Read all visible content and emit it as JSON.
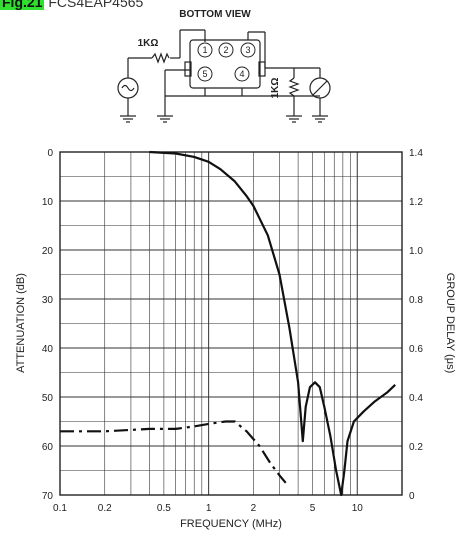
{
  "figure": {
    "number": "Fig.21",
    "part": "FCS4EAP4565"
  },
  "schematic": {
    "view_label": "BOTTOM VIEW",
    "source_resistor": "1KΩ",
    "load_resistor": "1KΩ",
    "pins": [
      "1",
      "2",
      "3",
      "5",
      "4"
    ]
  },
  "chart_data": {
    "type": "line",
    "xlabel": "FREQUENCY (MHz)",
    "ylabel_left": "ATTENUATION (dB)",
    "ylabel_right": "GROUP DELAY (μs)",
    "x_scale": "log",
    "xlim": [
      0.1,
      20
    ],
    "ylim_left": [
      0,
      70
    ],
    "ylim_right": [
      0,
      1.4
    ],
    "x_ticks": [
      0.1,
      0.2,
      0.5,
      1,
      2,
      5,
      10
    ],
    "x_tick_labels": [
      "0.1",
      "0.2",
      "0.5",
      "1",
      "2",
      "5",
      "10"
    ],
    "y_left_ticks": [
      0,
      10,
      20,
      30,
      40,
      50,
      60,
      70
    ],
    "y_left_tick_labels": [
      "0",
      "10",
      "20",
      "30",
      "40",
      "50",
      "60",
      "70"
    ],
    "y_right_ticks": [
      1.4,
      1.2,
      1.0,
      0.8,
      0.6,
      0.4,
      0.2,
      0
    ],
    "y_right_tick_labels": [
      "1.4",
      "1.2",
      "1.0",
      "0.8",
      "0.6",
      "0.4",
      "0.2",
      "0"
    ],
    "grid": true,
    "series": [
      {
        "axis": "left",
        "style": "solid",
        "x": [
          0.4,
          0.6,
          0.8,
          1.0,
          1.2,
          1.5,
          1.8,
          2.0,
          2.5,
          3.0,
          3.5,
          4.0,
          4.3,
          4.5,
          4.8,
          5.2,
          5.6,
          6.0,
          6.6,
          7.2,
          7.8,
          8.2,
          8.6,
          9.5,
          11,
          13,
          16,
          18
        ],
        "values": [
          0,
          0.3,
          1,
          2,
          3.5,
          6,
          9,
          11,
          17,
          25,
          36,
          47,
          59,
          52,
          48,
          47,
          48,
          52,
          58,
          65,
          70,
          65,
          59,
          55,
          53,
          51,
          49,
          47.5
        ]
      },
      {
        "axis": "right",
        "style": "dashed",
        "x": [
          0.1,
          0.2,
          0.4,
          0.6,
          0.8,
          1.0,
          1.3,
          1.5,
          1.8,
          2.2,
          2.6,
          3.0,
          3.3
        ],
        "values": [
          0.26,
          0.26,
          0.27,
          0.27,
          0.28,
          0.29,
          0.3,
          0.3,
          0.26,
          0.2,
          0.13,
          0.08,
          0.05
        ]
      }
    ]
  }
}
